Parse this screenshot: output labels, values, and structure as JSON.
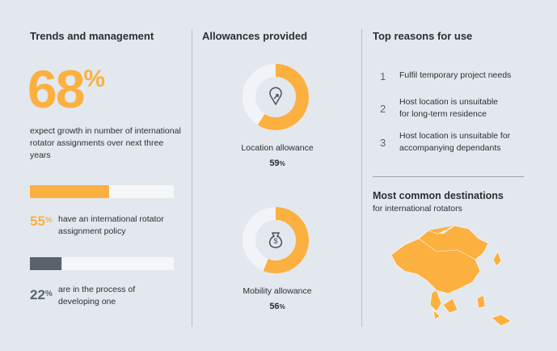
{
  "trends": {
    "title": "Trends and management",
    "stat": {
      "value": 68,
      "unit": "%"
    },
    "stat_text": "expect growth in number of international rotator assignments over next three years",
    "xlim": [
      0,
      100
    ],
    "bars": [
      {
        "value": 55,
        "unit": "%",
        "text": "have an international rotator assignment policy",
        "color": "#fbb040"
      },
      {
        "value": 22,
        "unit": "%",
        "text": "are in the process of developing one",
        "color": "#5a636b"
      }
    ]
  },
  "allowances": {
    "title": "Allowances provided",
    "xlim": [
      0,
      100
    ],
    "color": "#fbb040",
    "items": [
      {
        "label": "Location allowance",
        "value": 59,
        "unit": "%"
      },
      {
        "label": "Mobility allowance",
        "value": 56,
        "unit": "%"
      }
    ]
  },
  "reasons": {
    "title": "Top reasons for use",
    "items": [
      {
        "number": 1,
        "text": "Fulfil temporary project needs"
      },
      {
        "number": 2,
        "text": "Host location is unsuitable for long-term residence"
      },
      {
        "number": 3,
        "text": "Host location is unsuitable for accompanying dependants"
      }
    ]
  },
  "destinations": {
    "title": "Most common destinations",
    "subtitle": "for international rotators"
  }
}
